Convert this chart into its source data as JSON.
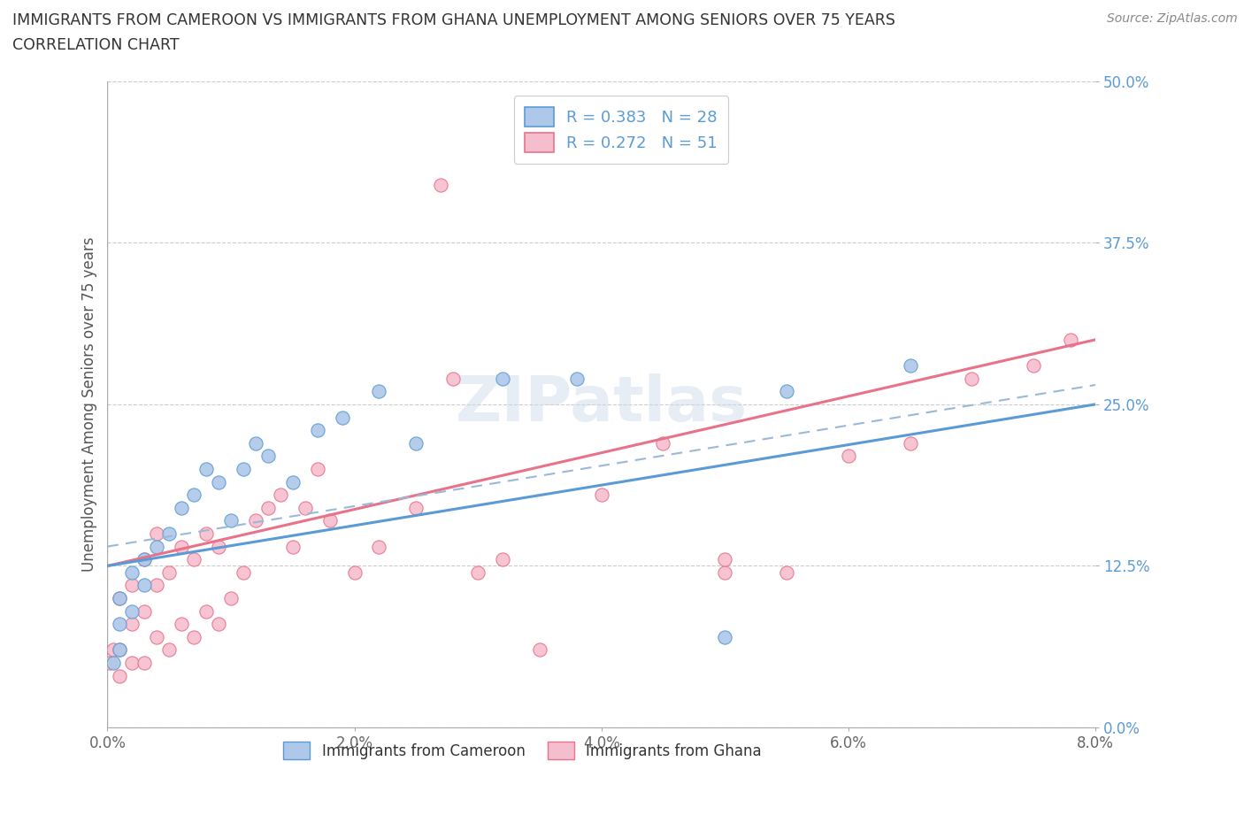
{
  "title_line1": "IMMIGRANTS FROM CAMEROON VS IMMIGRANTS FROM GHANA UNEMPLOYMENT AMONG SENIORS OVER 75 YEARS",
  "title_line2": "CORRELATION CHART",
  "source": "Source: ZipAtlas.com",
  "ylabel": "Unemployment Among Seniors over 75 years",
  "xlim": [
    0.0,
    0.08
  ],
  "ylim": [
    0.0,
    0.5
  ],
  "xticks": [
    0.0,
    0.02,
    0.04,
    0.06,
    0.08
  ],
  "yticks": [
    0.0,
    0.125,
    0.25,
    0.375,
    0.5
  ],
  "xticklabels": [
    "0.0%",
    "2.0%",
    "4.0%",
    "6.0%",
    "8.0%"
  ],
  "yticklabels": [
    "0.0%",
    "12.5%",
    "25.0%",
    "37.5%",
    "50.0%"
  ],
  "cameroon_R": 0.383,
  "cameroon_N": 28,
  "ghana_R": 0.272,
  "ghana_N": 51,
  "cameroon_color": "#adc8e8",
  "ghana_color": "#f5bece",
  "cameroon_line_color": "#5b9bd5",
  "ghana_line_color": "#e8728a",
  "watermark": "ZIPatlas",
  "cam_x": [
    0.0005,
    0.001,
    0.001,
    0.001,
    0.002,
    0.002,
    0.003,
    0.003,
    0.004,
    0.005,
    0.006,
    0.007,
    0.008,
    0.009,
    0.01,
    0.011,
    0.012,
    0.013,
    0.015,
    0.017,
    0.019,
    0.022,
    0.025,
    0.032,
    0.038,
    0.05,
    0.055,
    0.065
  ],
  "cam_y": [
    0.05,
    0.06,
    0.08,
    0.1,
    0.09,
    0.12,
    0.11,
    0.13,
    0.14,
    0.15,
    0.17,
    0.18,
    0.2,
    0.19,
    0.16,
    0.2,
    0.22,
    0.21,
    0.19,
    0.23,
    0.24,
    0.26,
    0.22,
    0.27,
    0.27,
    0.07,
    0.26,
    0.28
  ],
  "gh_x": [
    0.0002,
    0.0005,
    0.001,
    0.001,
    0.001,
    0.002,
    0.002,
    0.002,
    0.003,
    0.003,
    0.003,
    0.004,
    0.004,
    0.004,
    0.005,
    0.005,
    0.006,
    0.006,
    0.007,
    0.007,
    0.008,
    0.008,
    0.009,
    0.009,
    0.01,
    0.011,
    0.012,
    0.013,
    0.014,
    0.015,
    0.016,
    0.017,
    0.018,
    0.02,
    0.022,
    0.025,
    0.027,
    0.028,
    0.03,
    0.032,
    0.035,
    0.04,
    0.045,
    0.05,
    0.05,
    0.055,
    0.06,
    0.065,
    0.07,
    0.075,
    0.078
  ],
  "gh_y": [
    0.05,
    0.06,
    0.04,
    0.06,
    0.1,
    0.05,
    0.08,
    0.11,
    0.05,
    0.09,
    0.13,
    0.07,
    0.11,
    0.15,
    0.06,
    0.12,
    0.08,
    0.14,
    0.07,
    0.13,
    0.09,
    0.15,
    0.08,
    0.14,
    0.1,
    0.12,
    0.16,
    0.17,
    0.18,
    0.14,
    0.17,
    0.2,
    0.16,
    0.12,
    0.14,
    0.17,
    0.42,
    0.27,
    0.12,
    0.13,
    0.06,
    0.18,
    0.22,
    0.12,
    0.13,
    0.12,
    0.21,
    0.22,
    0.27,
    0.28,
    0.3
  ]
}
